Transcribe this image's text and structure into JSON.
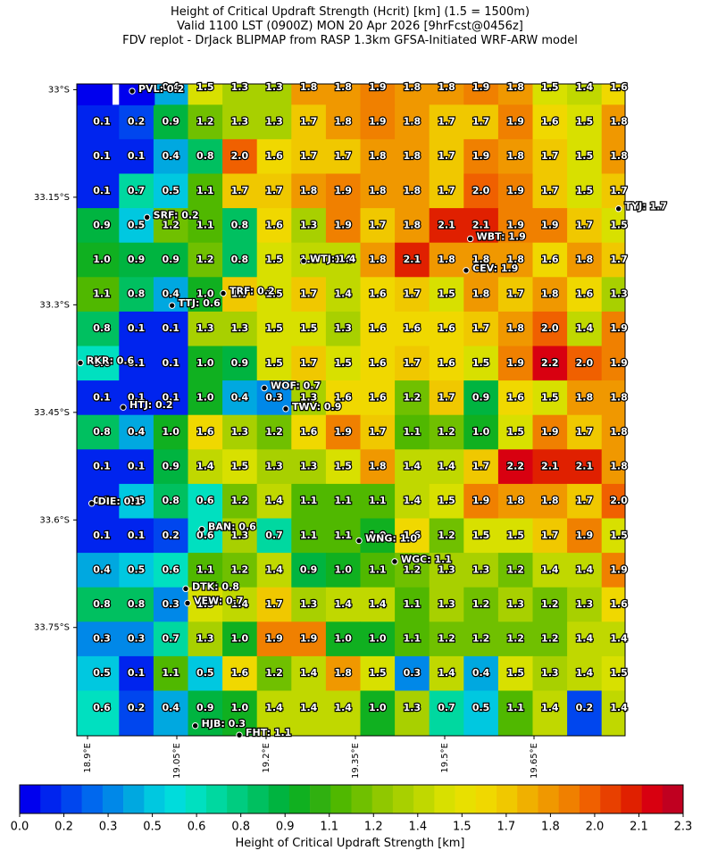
{
  "chart_data": {
    "type": "gridmap",
    "title": [
      "Height of Critical Updraft Strength (Hcrit) [km] (1.5 = 1500m)",
      "Valid 1100 LST (0900Z) MON 20 Apr 2026 [9hrFcst@0456z]",
      "FDV replot - DrJack BLIPMAP from RASP 1.3km GFSA-Initiated WRF-ARW model"
    ],
    "xlim": [
      18.882,
      19.803
    ],
    "ylim": [
      -32.992,
      -33.901
    ],
    "xticks": [
      {
        "value": 18.9,
        "label": "18.9°E"
      },
      {
        "value": 19.05,
        "label": "19.05°E"
      },
      {
        "value": 19.2,
        "label": "19.2°E"
      },
      {
        "value": 19.35,
        "label": "19.35°E"
      },
      {
        "value": 19.5,
        "label": "19.5°E"
      },
      {
        "value": 19.65,
        "label": "19.65°E"
      }
    ],
    "yticks": [
      {
        "value": -33,
        "label": "33°S"
      },
      {
        "value": -33.15,
        "label": "33.15°S"
      },
      {
        "value": -33.3,
        "label": "33.3°S"
      },
      {
        "value": -33.45,
        "label": "33.45°S"
      },
      {
        "value": -33.6,
        "label": "33.6°S"
      },
      {
        "value": -33.75,
        "label": "33.75°S"
      }
    ],
    "values": [
      [
        null,
        null,
        0.4,
        1.5,
        1.3,
        1.3,
        1.8,
        1.8,
        1.9,
        1.8,
        1.8,
        1.9,
        1.8,
        1.5,
        1.4,
        1.6
      ],
      [
        0.1,
        0.2,
        0.9,
        1.2,
        1.3,
        1.3,
        1.7,
        1.8,
        1.9,
        1.8,
        1.7,
        1.7,
        1.9,
        1.6,
        1.5,
        1.8
      ],
      [
        0.1,
        0.1,
        0.4,
        0.8,
        2.0,
        1.6,
        1.7,
        1.7,
        1.8,
        1.8,
        1.7,
        1.9,
        1.8,
        1.7,
        1.5,
        1.8
      ],
      [
        0.1,
        0.7,
        0.5,
        1.1,
        1.7,
        1.7,
        1.8,
        1.9,
        1.8,
        1.8,
        1.7,
        2.0,
        1.9,
        1.7,
        1.5,
        1.7
      ],
      [
        0.9,
        0.5,
        1.2,
        1.1,
        0.8,
        1.6,
        1.3,
        1.9,
        1.7,
        1.8,
        2.1,
        2.1,
        1.9,
        1.9,
        1.7,
        1.5
      ],
      [
        1.0,
        0.9,
        0.9,
        1.2,
        0.8,
        1.5,
        1.4,
        1.4,
        1.8,
        2.1,
        1.8,
        1.8,
        1.8,
        1.6,
        1.8,
        1.7
      ],
      [
        1.1,
        0.8,
        0.4,
        1.0,
        1.7,
        1.5,
        1.7,
        1.4,
        1.6,
        1.7,
        1.5,
        1.8,
        1.7,
        1.8,
        1.6,
        1.3
      ],
      [
        0.8,
        0.1,
        0.1,
        1.3,
        1.3,
        1.5,
        1.5,
        1.3,
        1.6,
        1.6,
        1.6,
        1.7,
        1.8,
        2.0,
        1.4,
        1.9
      ],
      [
        0.6,
        0.1,
        0.1,
        1.0,
        0.9,
        1.5,
        1.7,
        1.5,
        1.6,
        1.7,
        1.6,
        1.5,
        1.9,
        2.2,
        2.0,
        1.9
      ],
      [
        0.1,
        0.1,
        0.1,
        1.0,
        0.4,
        0.3,
        1.3,
        1.6,
        1.6,
        1.2,
        1.7,
        0.9,
        1.6,
        1.5,
        1.8,
        1.8
      ],
      [
        0.8,
        0.4,
        1.0,
        1.6,
        1.3,
        1.2,
        1.6,
        1.9,
        1.7,
        1.1,
        1.2,
        1.0,
        1.5,
        1.9,
        1.7,
        1.8
      ],
      [
        0.1,
        0.1,
        0.9,
        1.4,
        1.5,
        1.3,
        1.3,
        1.5,
        1.8,
        1.4,
        1.4,
        1.7,
        2.2,
        2.1,
        2.1,
        1.8
      ],
      [
        0.1,
        0.5,
        0.8,
        0.6,
        1.2,
        1.4,
        1.1,
        1.1,
        1.1,
        1.4,
        1.5,
        1.9,
        1.8,
        1.8,
        1.7,
        2.0
      ],
      [
        0.1,
        0.1,
        0.2,
        0.6,
        1.3,
        0.7,
        1.1,
        1.1,
        1.0,
        1.6,
        1.2,
        1.5,
        1.5,
        1.7,
        1.9,
        1.5
      ],
      [
        0.4,
        0.5,
        0.6,
        1.1,
        1.2,
        1.4,
        0.9,
        1.0,
        1.1,
        1.2,
        1.3,
        1.3,
        1.2,
        1.4,
        1.4,
        1.9
      ],
      [
        0.8,
        0.8,
        0.3,
        1.5,
        1.4,
        1.7,
        1.3,
        1.4,
        1.4,
        1.1,
        1.3,
        1.2,
        1.3,
        1.2,
        1.3,
        1.6
      ],
      [
        0.3,
        0.3,
        0.7,
        1.3,
        1.0,
        1.9,
        1.9,
        1.0,
        1.0,
        1.1,
        1.2,
        1.2,
        1.2,
        1.2,
        1.4,
        1.4
      ],
      [
        0.5,
        0.1,
        1.1,
        0.5,
        1.6,
        1.2,
        1.4,
        1.8,
        1.5,
        0.3,
        1.4,
        0.4,
        1.5,
        1.3,
        1.4,
        1.5
      ],
      [
        0.6,
        0.2,
        0.4,
        0.9,
        1.0,
        1.4,
        1.4,
        1.4,
        1.0,
        1.3,
        0.7,
        0.5,
        1.1,
        1.4,
        0.2,
        1.4
      ]
    ],
    "value_labels": [
      [
        null,
        null,
        "0.4",
        "1.5",
        "1.3",
        "1.3",
        "1.8",
        "1.8",
        "1.9",
        "1.8",
        "1.8",
        "1.9",
        "1.8",
        "1.5",
        "1.4",
        "1.6"
      ],
      [
        "0.1",
        "0.2",
        "0.9",
        "1.2",
        "1.3",
        "1.3",
        "1.7",
        "1.8",
        "1.9",
        "1.8",
        "1.7",
        "1.7",
        "1.9",
        "1.6",
        "1.5",
        "1.8"
      ],
      [
        "0.1",
        "0.1",
        "0.4",
        "0.8",
        "2.0",
        "1.6",
        "1.7",
        "1.7",
        "1.8",
        "1.8",
        "1.7",
        "1.9",
        "1.8",
        "1.7",
        "1.5",
        "1.8"
      ],
      [
        "0.1",
        "0.7",
        "0.5",
        "1.1",
        "1.7",
        "1.7",
        "1.8",
        "1.9",
        "1.8",
        "1.8",
        "1.7",
        "2.0",
        "1.9",
        "1.7",
        "1.5",
        "1.7"
      ],
      [
        "0.9",
        "0.5",
        "1.2",
        "1.1",
        "0.8",
        "1.6",
        "1.3",
        "1.9",
        "1.7",
        "1.8",
        "2.1",
        "2.1",
        "1.9",
        "1.9",
        "1.7",
        "1.5"
      ],
      [
        "1.0",
        "0.9",
        "0.9",
        "1.2",
        "0.8",
        "1.5",
        "1.4",
        "1.4",
        "1.8",
        "2.1",
        "1.8",
        "1.8",
        "1.8",
        "1.6",
        "1.8",
        "1.7"
      ],
      [
        "1.1",
        "0.8",
        "0.4",
        "1.0",
        "1.7",
        "1.5",
        "1.7",
        "1.4",
        "1.6",
        "1.7",
        "1.5",
        "1.8",
        "1.7",
        "1.8",
        "1.6",
        "1.3"
      ],
      [
        "0.8",
        "0.1",
        "0.1",
        "1.3",
        "1.3",
        "1.5",
        "1.5",
        "1.3",
        "1.6",
        "1.6",
        "1.6",
        "1.7",
        "1.8",
        "2.0",
        "1.4",
        "1.9"
      ],
      [
        "0.6",
        "0.1",
        "0.1",
        "1.0",
        "0.9",
        "1.5",
        "1.7",
        "1.5",
        "1.6",
        "1.7",
        "1.6",
        "1.5",
        "1.9",
        "2.2",
        "2.0",
        "1.9"
      ],
      [
        "0.1",
        "0.1",
        "0.1",
        "1.0",
        "0.4",
        "0.3",
        "1.3",
        "1.6",
        "1.6",
        "1.2",
        "1.7",
        "0.9",
        "1.6",
        "1.5",
        "1.8",
        "1.8"
      ],
      [
        "0.8",
        "0.4",
        "1.0",
        "1.6",
        "1.3",
        "1.2",
        "1.6",
        "1.9",
        "1.7",
        "1.1",
        "1.2",
        "1.0",
        "1.5",
        "1.9",
        "1.7",
        "1.8"
      ],
      [
        "0.1",
        "0.1",
        "0.9",
        "1.4",
        "1.5",
        "1.3",
        "1.3",
        "1.5",
        "1.8",
        "1.4",
        "1.4",
        "1.7",
        "2.2",
        "2.1",
        "2.1",
        "1.8"
      ],
      [
        "0.1",
        "0.5",
        "0.8",
        "0.6",
        "1.2",
        "1.4",
        "1.1",
        "1.1",
        "1.1",
        "1.4",
        "1.5",
        "1.9",
        "1.8",
        "1.8",
        "1.7",
        "2.0"
      ],
      [
        "0.1",
        "0.1",
        "0.2",
        "0.6",
        "1.3",
        "0.7",
        "1.1",
        "1.1",
        "1.0",
        "1.6",
        "1.2",
        "1.5",
        "1.5",
        "1.7",
        "1.9",
        "1.5"
      ],
      [
        "0.4",
        "0.5",
        "0.6",
        "1.1",
        "1.2",
        "1.4",
        "0.9",
        "1.0",
        "1.1",
        "1.2",
        "1.3",
        "1.3",
        "1.2",
        "1.4",
        "1.4",
        "1.9"
      ],
      [
        "0.8",
        "0.8",
        "0.3",
        "1.5",
        "1.4",
        "1.7",
        "1.3",
        "1.4",
        "1.4",
        "1.1",
        "1.3",
        "1.2",
        "1.3",
        "1.2",
        "1.3",
        "1.6"
      ],
      [
        "0.3",
        "0.3",
        "0.7",
        "1.3",
        "1.0",
        "1.9",
        "1.9",
        "1.0",
        "1.0",
        "1.1",
        "1.2",
        "1.2",
        "1.2",
        "1.2",
        "1.4",
        "1.4"
      ],
      [
        "0.5",
        "0.1",
        "1.1",
        "0.5",
        "1.6",
        "1.2",
        "1.4",
        "1.8",
        "1.5",
        "0.3",
        "1.4",
        "0.4",
        "1.5",
        "1.3",
        "1.4",
        "1.5"
      ],
      [
        "0.6",
        "0.2",
        "0.4",
        "0.9",
        "1.0",
        "1.4",
        "1.4",
        "1.4",
        "1.0",
        "1.3",
        "0.7",
        "0.5",
        "1.1",
        "1.4",
        "0.2",
        "1.4"
      ]
    ],
    "stations": [
      {
        "label": "PVL: 0.2",
        "lon": 18.975,
        "lat": -33.002
      },
      {
        "label": "SRF: 0.2",
        "lon": 19.0,
        "lat": -33.178
      },
      {
        "label": "TTJ: 0.6",
        "lon": 19.042,
        "lat": -33.301
      },
      {
        "label": "TRF: 0.2",
        "lon": 19.128,
        "lat": -33.284
      },
      {
        "label": "WTJ: 1.4",
        "lon": 19.263,
        "lat": -33.239
      },
      {
        "label": "WBT: 1.9",
        "lon": 19.543,
        "lat": -33.208
      },
      {
        "label": "CEV: 1.9",
        "lon": 19.536,
        "lat": -33.252
      },
      {
        "label": "TYJ: 1.7",
        "lon": 19.792,
        "lat": -33.166
      },
      {
        "label": "RKR: 0.6",
        "lon": 18.888,
        "lat": -33.381
      },
      {
        "label": "HTJ: 0.2",
        "lon": 18.96,
        "lat": -33.443
      },
      {
        "label": "WOF: 0.7",
        "lon": 19.197,
        "lat": -33.416
      },
      {
        "label": "TWV: 0.9",
        "lon": 19.233,
        "lat": -33.445
      },
      {
        "label": "DIE: 0.1",
        "lon": 18.907,
        "lat": -33.577
      },
      {
        "label": "BAN: 0.6",
        "lon": 19.092,
        "lat": -33.613
      },
      {
        "label": "WNG: 1.0",
        "lon": 19.356,
        "lat": -33.629
      },
      {
        "label": "WGC: 1.1",
        "lon": 19.416,
        "lat": -33.658
      },
      {
        "label": "DTK: 0.8",
        "lon": 19.065,
        "lat": -33.696
      },
      {
        "label": "VEW: 0.7",
        "lon": 19.068,
        "lat": -33.716
      },
      {
        "label": "HJB: 0.3",
        "lon": 19.081,
        "lat": -33.887
      },
      {
        "label": "FHT: 1.1",
        "lon": 19.155,
        "lat": -33.9
      }
    ],
    "colorbar": {
      "label": "Height of Critical Updraft Strength [km]",
      "lim": [
        0,
        2.3
      ],
      "ticks": [
        {
          "value": 0,
          "label": "0.0"
        },
        {
          "value": 0.1533,
          "label": "0.2"
        },
        {
          "value": 0.3067,
          "label": "0.3"
        },
        {
          "value": 0.46,
          "label": "0.5"
        },
        {
          "value": 0.6133,
          "label": "0.6"
        },
        {
          "value": 0.7667,
          "label": "0.8"
        },
        {
          "value": 0.92,
          "label": "0.9"
        },
        {
          "value": 1.0733,
          "label": "1.1"
        },
        {
          "value": 1.2267,
          "label": "1.2"
        },
        {
          "value": 1.38,
          "label": "1.4"
        },
        {
          "value": 1.5333,
          "label": "1.5"
        },
        {
          "value": 1.6867,
          "label": "1.7"
        },
        {
          "value": 1.84,
          "label": "1.8"
        },
        {
          "value": 1.9933,
          "label": "2.0"
        },
        {
          "value": 2.1467,
          "label": "2.1"
        },
        {
          "value": 2.3,
          "label": "2.3"
        }
      ],
      "colors": [
        "#0000ee",
        "#0024ee",
        "#0046ee",
        "#0068ee",
        "#0088e8",
        "#00a8e0",
        "#00c8e0",
        "#00dcdc",
        "#00e0c0",
        "#00d8a0",
        "#00cc80",
        "#00c060",
        "#00b440",
        "#10b020",
        "#30b010",
        "#50b800",
        "#70c000",
        "#90c800",
        "#a8d000",
        "#c0d800",
        "#d8e000",
        "#e8e000",
        "#f0d800",
        "#f0c800",
        "#f0b000",
        "#f09800",
        "#f08000",
        "#f06000",
        "#e84000",
        "#e02000",
        "#d80010",
        "#c00020"
      ]
    }
  }
}
